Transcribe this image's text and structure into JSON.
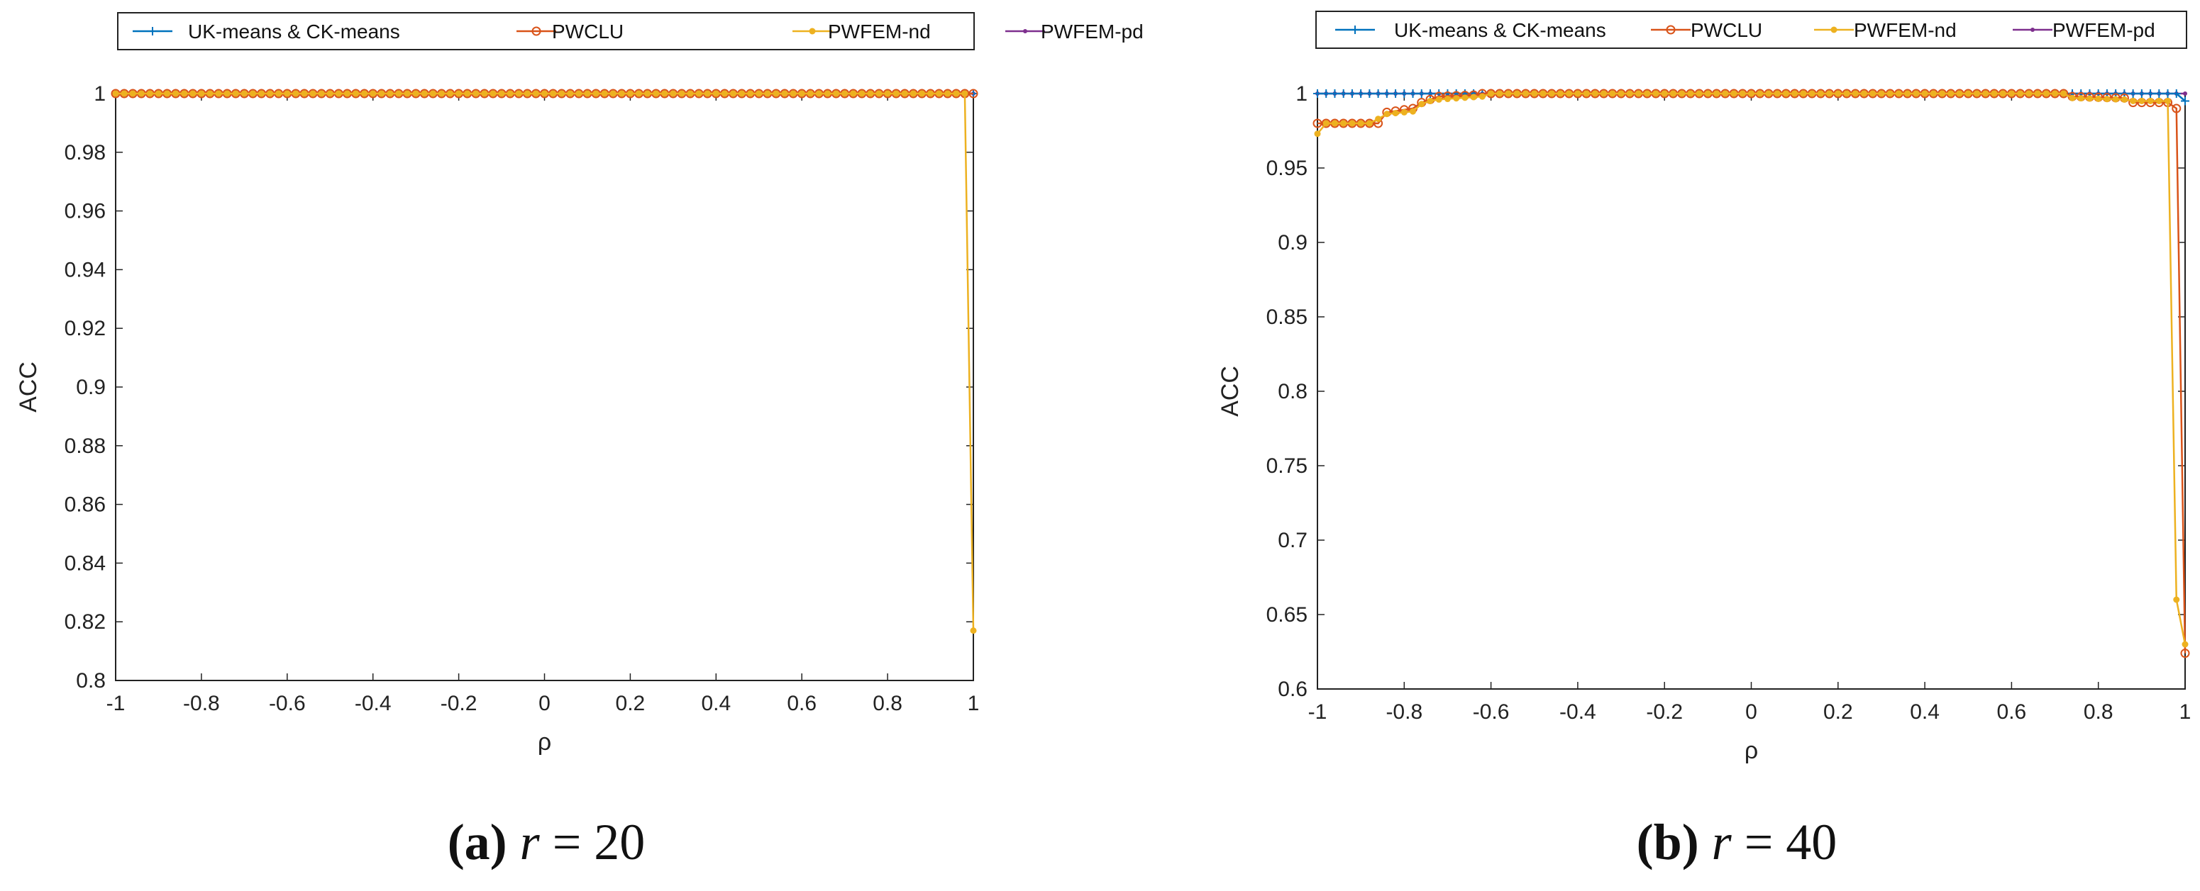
{
  "colors": {
    "uk": "#0072bd",
    "pwclu": "#d95319",
    "pwfem_nd": "#edb120",
    "pwfem_pd": "#7e2f8e"
  },
  "chart_data": [
    {
      "type": "line",
      "caption": {
        "letter": "(a)",
        "var": "r",
        "eq": " = 20"
      },
      "xlabel": "ρ",
      "ylabel": "ACC",
      "xlim": [
        -1,
        1
      ],
      "ylim": [
        0.8,
        1
      ],
      "xticks": [
        -1,
        -0.8,
        -0.6,
        -0.4,
        -0.2,
        0,
        0.2,
        0.4,
        0.6,
        0.8,
        1
      ],
      "xtick_labels": [
        "-1",
        "-0.8",
        "-0.6",
        "-0.4",
        "-0.2",
        "0",
        "0.2",
        "0.4",
        "0.6",
        "0.8",
        "1"
      ],
      "yticks": [
        0.8,
        0.82,
        0.84,
        0.86,
        0.88,
        0.9,
        0.92,
        0.94,
        0.96,
        0.98,
        1
      ],
      "ytick_labels": [
        "0.8",
        "0.82",
        "0.84",
        "0.86",
        "0.88",
        "0.9",
        "0.92",
        "0.94",
        "0.96",
        "0.98",
        "1"
      ],
      "legend_position": "top",
      "series": [
        {
          "name": "UK-means & CK-means",
          "color_key": "uk",
          "marker": "plus",
          "default_y": 1,
          "points": []
        },
        {
          "name": "PWCLU",
          "color_key": "pwclu",
          "marker": "circle",
          "default_y": 1,
          "points": []
        },
        {
          "name": "PWFEM-nd",
          "color_key": "pwfem_nd",
          "marker": "dot",
          "default_y": 1,
          "points": [
            [
              0.98,
              1
            ],
            [
              0.99,
              0.9
            ],
            [
              1,
              0.817
            ]
          ]
        },
        {
          "name": "PWFEM-pd",
          "color_key": "pwfem_pd",
          "marker": "smalldot",
          "default_y": 1,
          "points": []
        }
      ]
    },
    {
      "type": "line",
      "caption": {
        "letter": "(b)",
        "var": "r",
        "eq": " = 40"
      },
      "xlabel": "ρ",
      "ylabel": "ACC",
      "xlim": [
        -1,
        1
      ],
      "ylim": [
        0.6,
        1
      ],
      "xticks": [
        -1,
        -0.8,
        -0.6,
        -0.4,
        -0.2,
        0,
        0.2,
        0.4,
        0.6,
        0.8,
        1
      ],
      "xtick_labels": [
        "-1",
        "-0.8",
        "-0.6",
        "-0.4",
        "-0.2",
        "0",
        "0.2",
        "0.4",
        "0.6",
        "0.8",
        "1"
      ],
      "yticks": [
        0.6,
        0.65,
        0.7,
        0.75,
        0.8,
        0.85,
        0.9,
        0.95,
        1
      ],
      "ytick_labels": [
        "0.6",
        "0.65",
        "0.7",
        "0.75",
        "0.8",
        "0.85",
        "0.9",
        "0.95",
        "1"
      ],
      "legend_position": "top",
      "series": [
        {
          "name": "UK-means & CK-means",
          "color_key": "uk",
          "marker": "plus",
          "default_y": 1,
          "points": [
            [
              0.99,
              0.995
            ],
            [
              1,
              0.995
            ]
          ]
        },
        {
          "name": "PWCLU",
          "color_key": "pwclu",
          "marker": "circle",
          "default_y": 1,
          "points": [
            [
              -1,
              0.98
            ],
            [
              -0.86,
              0.98
            ],
            [
              -0.85,
              0.987
            ],
            [
              -0.78,
              0.99
            ],
            [
              -0.77,
              0.993
            ],
            [
              -0.74,
              0.996
            ],
            [
              -0.73,
              0.998
            ],
            [
              -0.64,
              0.999
            ],
            [
              -0.62,
              1.0
            ],
            [
              0.72,
              1.0
            ],
            [
              0.74,
              0.998
            ],
            [
              0.86,
              0.997
            ],
            [
              0.87,
              0.994
            ],
            [
              0.97,
              0.994
            ],
            [
              0.98,
              0.99
            ],
            [
              0.99,
              0.9
            ],
            [
              1,
              0.624
            ]
          ]
        },
        {
          "name": "PWFEM-nd",
          "color_key": "pwfem_nd",
          "marker": "dot",
          "default_y": 1,
          "points": [
            [
              -1,
              0.973
            ],
            [
              -0.99,
              0.98
            ],
            [
              -0.87,
              0.98
            ],
            [
              -0.86,
              0.983
            ],
            [
              -0.85,
              0.986
            ],
            [
              -0.78,
              0.988
            ],
            [
              -0.77,
              0.991
            ],
            [
              -0.76,
              0.993
            ],
            [
              -0.74,
              0.995
            ],
            [
              -0.72,
              0.996
            ],
            [
              -0.62,
              0.998
            ],
            [
              -0.6,
              1.0
            ],
            [
              0.72,
              1.0
            ],
            [
              0.74,
              0.997
            ],
            [
              0.86,
              0.996
            ],
            [
              0.87,
              0.995
            ],
            [
              0.96,
              0.995
            ],
            [
              0.97,
              0.714
            ],
            [
              0.98,
              0.66
            ],
            [
              0.99,
              0.63
            ],
            [
              1,
              0.63
            ]
          ]
        },
        {
          "name": "PWFEM-pd",
          "color_key": "pwfem_pd",
          "marker": "smalldot",
          "default_y": 1,
          "points": []
        }
      ]
    }
  ]
}
